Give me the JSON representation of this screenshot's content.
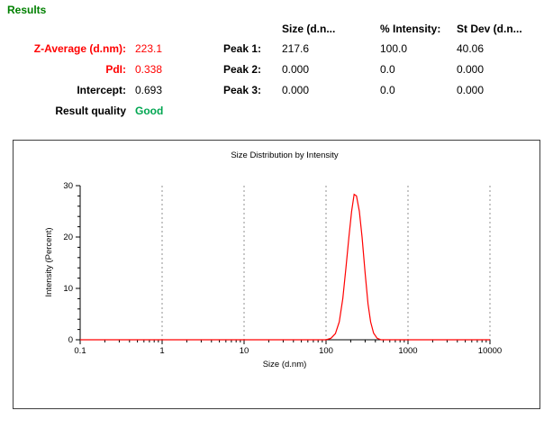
{
  "section_title": "Results",
  "table": {
    "headers": {
      "size": "Size (d.n...",
      "intensity": "% Intensity:",
      "stdev": "St Dev (d.n..."
    },
    "rows": [
      {
        "label": "Z-Average (d.nm):",
        "value": "223.1"
      },
      {
        "label": "PdI:",
        "value": "0.338"
      },
      {
        "label": "Intercept:",
        "value": "0.693"
      },
      {
        "label": "Result quality",
        "value": "Good"
      }
    ],
    "peaks": [
      {
        "label": "Peak 1:",
        "size": "217.6",
        "intensity": "100.0",
        "stdev": "40.06"
      },
      {
        "label": "Peak 2:",
        "size": "0.000",
        "intensity": "0.0",
        "stdev": "0.000"
      },
      {
        "label": "Peak 3:",
        "size": "0.000",
        "intensity": "0.0",
        "stdev": "0.000"
      }
    ]
  },
  "colors": {
    "section_green": "#008000",
    "good_green": "#00a651",
    "accent_red": "#ff0000",
    "grid_gray": "#909090",
    "axis_black": "#000000"
  },
  "chart_data": {
    "type": "line",
    "title": "Size Distribution by Intensity",
    "xlabel": "Size (d.nm)",
    "ylabel": "Intensity (Percent)",
    "x_scale": "log",
    "xlim": [
      0.1,
      10000
    ],
    "ylim": [
      0,
      30
    ],
    "x_ticks": [
      0.1,
      1,
      10,
      100,
      1000,
      10000
    ],
    "x_tick_labels": [
      "0.1",
      "1",
      "10",
      "100",
      "1000",
      "10000"
    ],
    "y_ticks": [
      0,
      10,
      20,
      30
    ],
    "grid": "vertical-dashed",
    "legend": "none",
    "series": [
      {
        "color": "#ff0000",
        "points": [
          [
            0.1,
            0
          ],
          [
            100,
            0
          ],
          [
            115,
            0.3
          ],
          [
            130,
            1.2
          ],
          [
            145,
            3.5
          ],
          [
            160,
            8
          ],
          [
            175,
            14
          ],
          [
            190,
            20
          ],
          [
            205,
            25
          ],
          [
            220,
            28.3
          ],
          [
            235,
            28
          ],
          [
            255,
            25
          ],
          [
            275,
            20
          ],
          [
            300,
            13
          ],
          [
            325,
            7
          ],
          [
            350,
            3.5
          ],
          [
            380,
            1.3
          ],
          [
            420,
            0.3
          ],
          [
            470,
            0
          ],
          [
            10000,
            0
          ]
        ]
      }
    ]
  }
}
